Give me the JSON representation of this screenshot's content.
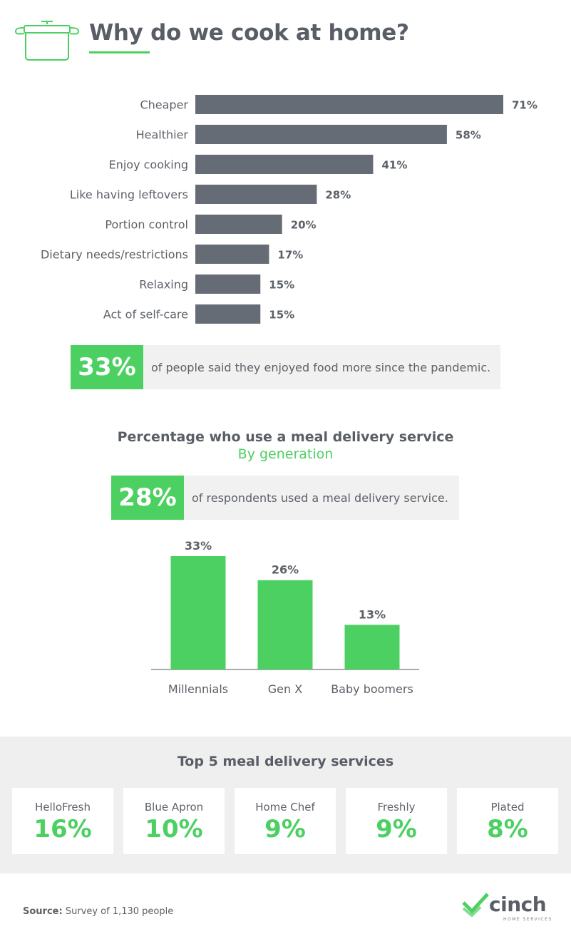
{
  "header": {
    "title": "Why do we cook at home?",
    "icon": "cooking-pot-icon"
  },
  "colors": {
    "accent": "#4cd062",
    "bar_gray": "#666c75",
    "text": "#5c6168",
    "panel": "#f1f1f1"
  },
  "chart_data": [
    {
      "type": "bar",
      "orientation": "horizontal",
      "categories": [
        "Cheaper",
        "Healthier",
        "Enjoy cooking",
        "Like having leftovers",
        "Portion control",
        "Dietary needs/restrictions",
        "Relaxing",
        "Act of self-care"
      ],
      "values": [
        71,
        58,
        41,
        28,
        20,
        17,
        15,
        15
      ],
      "value_labels": [
        "71%",
        "58%",
        "41%",
        "28%",
        "20%",
        "17%",
        "15%",
        "15%"
      ],
      "title": "Why do we cook at home?",
      "xlim": [
        0,
        71
      ]
    },
    {
      "type": "bar",
      "categories": [
        "Millennials",
        "Gen X",
        "Baby boomers"
      ],
      "values": [
        33,
        26,
        13
      ],
      "value_labels": [
        "33%",
        "26%",
        "13%"
      ],
      "title": "Percentage who use a meal delivery service",
      "subtitle": "By generation",
      "ylim": [
        0,
        33
      ]
    }
  ],
  "callout1": {
    "big": "33%",
    "text": "of people said they enjoyed food more since the pandemic."
  },
  "section2": {
    "title": "Percentage who use a meal delivery service",
    "subtitle": "By generation"
  },
  "callout2": {
    "big": "28%",
    "text": "of respondents used a meal delivery service."
  },
  "services": {
    "title": "Top 5 meal delivery services",
    "items": [
      {
        "name": "HelloFresh",
        "value": "16%"
      },
      {
        "name": "Blue Apron",
        "value": "10%"
      },
      {
        "name": "Home Chef",
        "value": "9%"
      },
      {
        "name": "Freshly",
        "value": "9%"
      },
      {
        "name": "Plated",
        "value": "8%"
      }
    ]
  },
  "footer": {
    "source_label": "Source:",
    "source_text": " Survey of 1,130 people"
  },
  "logo": {
    "word": "cinch",
    "sub": "HOME SERVICES",
    "icon": "check-mark-icon"
  }
}
